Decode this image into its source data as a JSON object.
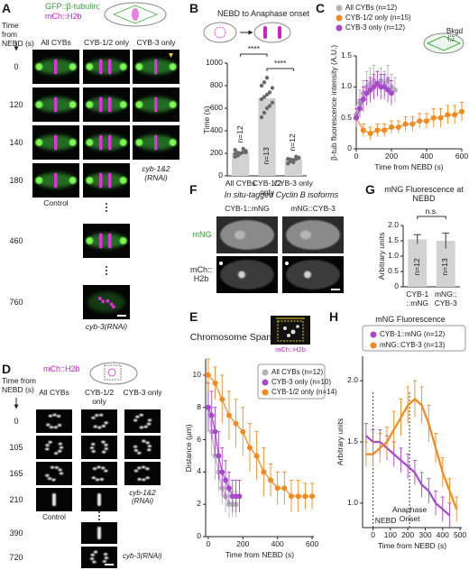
{
  "panel_a": {
    "label": "A",
    "legend": [
      "GFP::β-tubulin;",
      "mCh::H2b"
    ],
    "time_axis": "Time from NEBD (s)",
    "columns": [
      "All CYBs",
      "CYB-1/2 only",
      "CYB-3 only"
    ],
    "times": [
      0,
      120,
      140,
      180,
      460,
      760
    ],
    "conditions": [
      "Control",
      "cyb-1&2 (RNAi)",
      "cyb-3(RNAi)"
    ]
  },
  "panel_d": {
    "label": "D",
    "legend": "mCh::H2b",
    "time_axis": "Time from NEBD (s)",
    "columns": [
      "All CYBs",
      "CYB-1/2 only",
      "CYB-3 only"
    ],
    "times": [
      0,
      105,
      165,
      210,
      390,
      720
    ],
    "conditions": [
      "Control",
      "cyb-1&2 (RNAi)",
      "cyb-3(RNAi)"
    ]
  },
  "panel_f": {
    "label": "F",
    "title": "In situ-tagged Cyclin B isoforms",
    "columns": [
      "CYB-1::mNG",
      "mNG::CYB-3"
    ],
    "rows": [
      "mNG",
      "mCh:: H2b"
    ]
  },
  "chart_data": [
    {
      "label": "B",
      "type": "bar",
      "title": "NEBD to Anaphase onset",
      "ylabel": "Time (s)",
      "categories": [
        "All CYBs",
        "CYB-1/2 only",
        "CYB-3 only"
      ],
      "values": [
        205,
        690,
        145
      ],
      "points": [
        [
          170,
          190,
          200,
          210,
          220,
          230,
          180,
          200,
          240,
          210,
          195,
          205
        ],
        [
          520,
          560,
          600,
          620,
          650,
          680,
          700,
          720,
          740,
          780,
          800,
          830,
          870
        ],
        [
          110,
          130,
          140,
          150,
          160,
          150,
          140,
          120,
          170,
          160,
          150,
          145
        ]
      ],
      "n_labels": [
        "n=12",
        "n=13",
        "n=12"
      ],
      "significance": [
        "****",
        "****"
      ],
      "color": "#d2d2d2",
      "point_color": "#6a6a6a",
      "ylim": [
        0,
        1000
      ],
      "yticks": [
        0,
        200,
        400,
        600,
        800,
        1000
      ]
    },
    {
      "label": "C",
      "type": "line",
      "ylabel": "β-tub fluorescence intensity (A.U.)",
      "xlabel": "Time from NEBD (s)",
      "annotation": "Bkgd",
      "markers": true,
      "xlim": [
        0,
        600
      ],
      "xticks": [
        0,
        200,
        400,
        600
      ],
      "ylim": [
        0,
        1.5
      ],
      "yticks": [
        0,
        0.5,
        {
          "value": 1,
          "label": "1.0"
        },
        1.5
      ],
      "series": [
        {
          "name": "All CYBs (n=12)",
          "color": "#b3b3b3",
          "x": [
            0,
            20,
            40,
            60,
            80,
            100,
            120,
            140,
            160,
            180,
            200,
            220
          ],
          "values": [
            0.55,
            0.75,
            0.9,
            1.0,
            1.05,
            1.1,
            1.05,
            1.1,
            1.05,
            1.1,
            1.0,
            0.95
          ],
          "errors": [
            0.15,
            0.2,
            0.2,
            0.25,
            0.25,
            0.25,
            0.2,
            0.2,
            0.2,
            0.25,
            0.2,
            0.2
          ]
        },
        {
          "name": "CYB-1/2 only (n=15)",
          "color": "#f28a1f",
          "x": [
            0,
            40,
            80,
            120,
            160,
            200,
            240,
            280,
            320,
            360,
            400,
            440,
            480,
            520,
            560,
            600
          ],
          "values": [
            0.5,
            0.3,
            0.25,
            0.3,
            0.3,
            0.35,
            0.35,
            0.4,
            0.4,
            0.45,
            0.45,
            0.5,
            0.5,
            0.55,
            0.55,
            0.6
          ],
          "errors": [
            0.15,
            0.1,
            0.1,
            0.1,
            0.1,
            0.1,
            0.1,
            0.12,
            0.12,
            0.12,
            0.12,
            0.15,
            0.15,
            0.15,
            0.15,
            0.15
          ]
        },
        {
          "name": "CYB-3 only (n=12)",
          "color": "#a64ac9",
          "x": [
            0,
            20,
            40,
            60,
            80,
            100,
            120,
            140,
            160,
            180,
            200
          ],
          "values": [
            0.5,
            0.65,
            0.8,
            0.9,
            0.95,
            1.0,
            1.05,
            1.0,
            1.0,
            0.95,
            0.9
          ],
          "errors": [
            0.15,
            0.15,
            0.2,
            0.2,
            0.2,
            0.2,
            0.2,
            0.2,
            0.2,
            0.2,
            0.2
          ]
        }
      ]
    },
    {
      "label": "G",
      "type": "bar",
      "title": "mNG Fluorescence at NEBD",
      "ylabel": "Arbitrary units",
      "categories": [
        "CYB-1 ::mNG",
        "mNG:: CYB-3"
      ],
      "values": [
        1.55,
        1.5
      ],
      "errors": [
        0.15,
        0.25
      ],
      "n_labels": [
        "n=12",
        "n=13"
      ],
      "significance": [
        "n.s."
      ],
      "color": "#d2d2d2",
      "ylim": [
        0,
        2
      ],
      "yticks": [
        0,
        0.5,
        {
          "value": 1,
          "label": "1.0"
        },
        1.5,
        {
          "value": 2,
          "label": "2.0"
        }
      ]
    },
    {
      "label": "E",
      "type": "line",
      "title": "Chromosome Span",
      "image_label": "mCh::H2b",
      "ylabel": "Distance (µm)",
      "xlabel": "Time from NEBD (s)",
      "markers": true,
      "xlim": [
        -15,
        610
      ],
      "xticks": [
        0,
        200,
        400,
        600
      ],
      "ylim": [
        0,
        11
      ],
      "yticks": [
        0,
        2,
        4,
        6,
        8,
        10
      ],
      "series": [
        {
          "name": "All CYBs (n=12)",
          "color": "#b3b3b3",
          "x": [
            0,
            20,
            40,
            60,
            80,
            100,
            120,
            140,
            160
          ],
          "values": [
            8,
            6.5,
            5,
            4,
            3,
            2.5,
            2,
            2,
            2
          ],
          "errors": [
            1.5,
            1.5,
            1.5,
            1.2,
            1,
            1,
            0.8,
            0.8,
            0.8
          ]
        },
        {
          "name": "CYB-3 only (n=10)",
          "color": "#a64ac9",
          "x": [
            0,
            20,
            40,
            60,
            80,
            100,
            120,
            140,
            160,
            180
          ],
          "values": [
            8,
            7.5,
            6.5,
            5,
            4,
            3.5,
            3,
            2.5,
            2.5,
            2.5
          ],
          "errors": [
            1.5,
            1.5,
            1.5,
            1.5,
            1.5,
            1.2,
            1,
            1,
            1,
            1
          ]
        },
        {
          "name": "CYB-1/2 only (n=14)",
          "color": "#f28a1f",
          "x": [
            0,
            40,
            80,
            120,
            160,
            200,
            240,
            280,
            320,
            360,
            400,
            440,
            480,
            520,
            560,
            600
          ],
          "values": [
            10,
            9.5,
            8.5,
            7.5,
            7,
            6.5,
            5.5,
            5,
            4,
            3.5,
            3,
            3,
            2.5,
            2.5,
            2.5,
            2.5
          ],
          "errors": [
            1,
            1,
            1.5,
            1.5,
            1.5,
            1.5,
            1.5,
            1.5,
            1.5,
            1,
            1,
            1,
            1,
            1,
            0.8,
            0.8
          ]
        }
      ]
    },
    {
      "label": "H",
      "type": "line",
      "title": "mNG Fluorescence",
      "ylabel": "Arbitrary units",
      "xlabel": "Time from NEBD (s)",
      "markers": false,
      "xlim": [
        -60,
        510
      ],
      "xticks": [
        0,
        100,
        200,
        300,
        400,
        500
      ],
      "ylim": [
        0.8,
        2.2
      ],
      "yticks": [
        {
          "value": 1,
          "label": "1.0"
        },
        1.5,
        {
          "value": 2,
          "label": "2.0"
        }
      ],
      "annotations": [
        {
          "label": "NEBD",
          "x": 0
        },
        {
          "label": "Anaphase Onset",
          "x": 210
        }
      ],
      "series": [
        {
          "name": "CYB-1::mNG (n=12)",
          "color": "#a64ac9",
          "x": [
            -40,
            0,
            40,
            80,
            120,
            160,
            200,
            240,
            280,
            320,
            360,
            400,
            440
          ],
          "values": [
            1.55,
            1.5,
            1.5,
            1.45,
            1.4,
            1.35,
            1.3,
            1.25,
            1.15,
            1.1,
            1.0,
            0.95,
            0.9
          ],
          "errors": [
            0.1,
            0.1,
            0.1,
            0.1,
            0.1,
            0.1,
            0.1,
            0.1,
            0.1,
            0.1,
            0.1,
            0.1,
            0.1
          ]
        },
        {
          "name": "mNG::CYB-3 (n=13)",
          "color": "#f28a1f",
          "x": [
            -40,
            0,
            40,
            80,
            120,
            160,
            200,
            240,
            280,
            320,
            360,
            400,
            440,
            480
          ],
          "values": [
            1.4,
            1.4,
            1.45,
            1.5,
            1.6,
            1.7,
            1.8,
            1.85,
            1.8,
            1.65,
            1.45,
            1.25,
            1.1,
            0.95
          ],
          "errors": [
            0.1,
            0.1,
            0.12,
            0.12,
            0.15,
            0.15,
            0.15,
            0.15,
            0.15,
            0.15,
            0.12,
            0.12,
            0.1,
            0.1
          ]
        }
      ]
    }
  ]
}
